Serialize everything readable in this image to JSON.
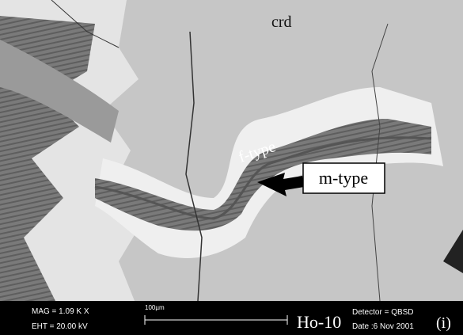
{
  "labels": {
    "mineral": "crd",
    "f_type": "f-type",
    "m_type": "m-type",
    "panel": "(i)"
  },
  "info_bar": {
    "mag": "MAG =  1.09 K X",
    "eht": "EHT = 20.00 kV",
    "scale": "100µm",
    "sample": "Ho-10",
    "detector": "Detector = QBSD",
    "date": "Date :6 Nov 2001"
  }
}
